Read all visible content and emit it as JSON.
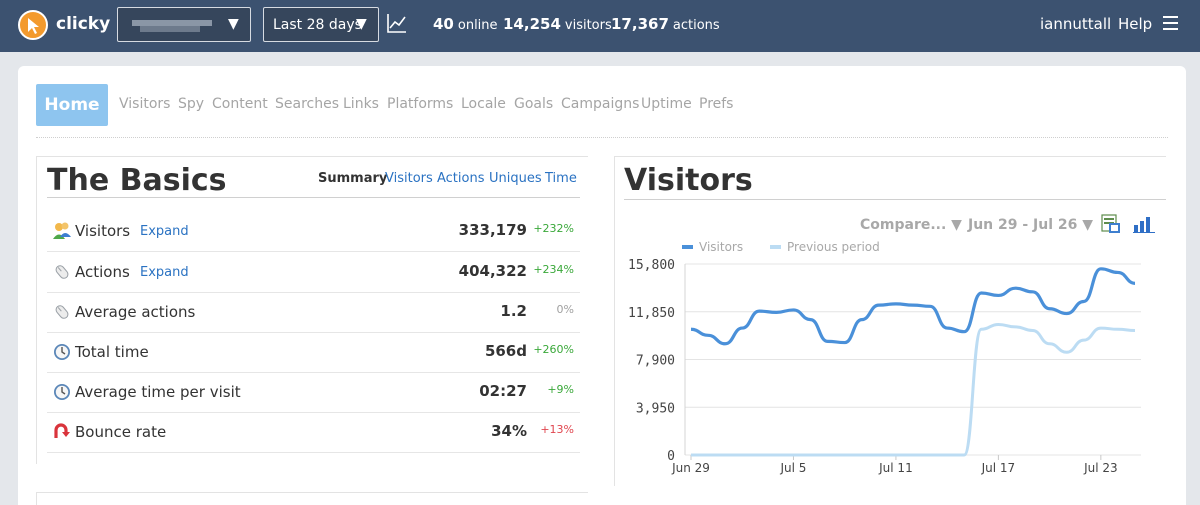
{
  "header": {
    "brand": "clicky",
    "range_label": "Last 28 days",
    "online_count": "40",
    "online_unit": "online",
    "visitors_count": "14,254",
    "visitors_unit": "visitors",
    "actions_count": "17,367",
    "actions_unit": "actions",
    "username": "iannuttall",
    "help": "Help",
    "caret": "▼",
    "accent": "#3c5270"
  },
  "nav": {
    "active": "Home",
    "items": [
      "Visitors",
      "Spy",
      "Content",
      "Searches",
      "Links",
      "Platforms",
      "Locale",
      "Goals",
      "Campaigns",
      "Uptime",
      "Prefs"
    ]
  },
  "basics": {
    "title": "The Basics",
    "tabs": [
      "Summary",
      "Visitors",
      "Actions",
      "Uniques",
      "Time"
    ],
    "expand_label": "Expand",
    "rows": [
      {
        "label": "Visitors",
        "value": "333,179",
        "change": "+232%",
        "icon": "visitors-icon",
        "expand": true,
        "trend": "up"
      },
      {
        "label": "Actions",
        "value": "404,322",
        "change": "+234%",
        "icon": "actions-icon",
        "expand": true,
        "trend": "up"
      },
      {
        "label": "Average actions",
        "value": "1.2",
        "change": "0%",
        "icon": "actions-icon",
        "expand": false,
        "trend": "flat"
      },
      {
        "label": "Total time",
        "value": "566d",
        "change": "+260%",
        "icon": "clock-icon",
        "expand": false,
        "trend": "up"
      },
      {
        "label": "Average time per visit",
        "value": "02:27",
        "change": "+9%",
        "icon": "clock-icon",
        "expand": false,
        "trend": "up"
      },
      {
        "label": "Bounce rate",
        "value": "34%",
        "change": "+13%",
        "icon": "bounce-icon",
        "expand": false,
        "trend": "bad"
      }
    ],
    "colors": {
      "up": "#3aa83a",
      "flat": "#a0a0a0",
      "bad": "#e0454e"
    }
  },
  "visitors_panel": {
    "title": "Visitors",
    "compare_label": "Compare... ▼",
    "date_range": "Jun 29 - Jul 26 ▼"
  },
  "chart_data": {
    "type": "line",
    "x": [
      "Jun 29",
      "Jun 30",
      "Jul 1",
      "Jul 2",
      "Jul 3",
      "Jul 4",
      "Jul 5",
      "Jul 6",
      "Jul 7",
      "Jul 8",
      "Jul 9",
      "Jul 10",
      "Jul 11",
      "Jul 12",
      "Jul 13",
      "Jul 14",
      "Jul 15",
      "Jul 16",
      "Jul 17",
      "Jul 18",
      "Jul 19",
      "Jul 20",
      "Jul 21",
      "Jul 22",
      "Jul 23",
      "Jul 24",
      "Jul 25"
    ],
    "xticks": [
      "Jun 29",
      "Jul 5",
      "Jul 11",
      "Jul 17",
      "Jul 23"
    ],
    "yticks": [
      "15,800",
      "11,850",
      "7,900",
      "3,950",
      "0"
    ],
    "ylim": [
      0,
      15800
    ],
    "legend": "top-left",
    "series": [
      {
        "name": "Visitors",
        "color": "#4a90d9",
        "values": [
          10400,
          9900,
          9200,
          10500,
          11900,
          11800,
          12000,
          11200,
          9400,
          9300,
          11200,
          12400,
          12500,
          12400,
          12300,
          10500,
          10200,
          13400,
          13200,
          13800,
          13500,
          12100,
          11700,
          12700,
          15400,
          15100,
          14200
        ]
      },
      {
        "name": "Previous period",
        "color": "#bcdcf3",
        "values": [
          0,
          0,
          0,
          0,
          0,
          0,
          0,
          0,
          0,
          0,
          0,
          0,
          0,
          0,
          0,
          0,
          0,
          10400,
          10800,
          10600,
          10300,
          9200,
          8500,
          9500,
          10500,
          10400,
          10300
        ]
      }
    ]
  }
}
